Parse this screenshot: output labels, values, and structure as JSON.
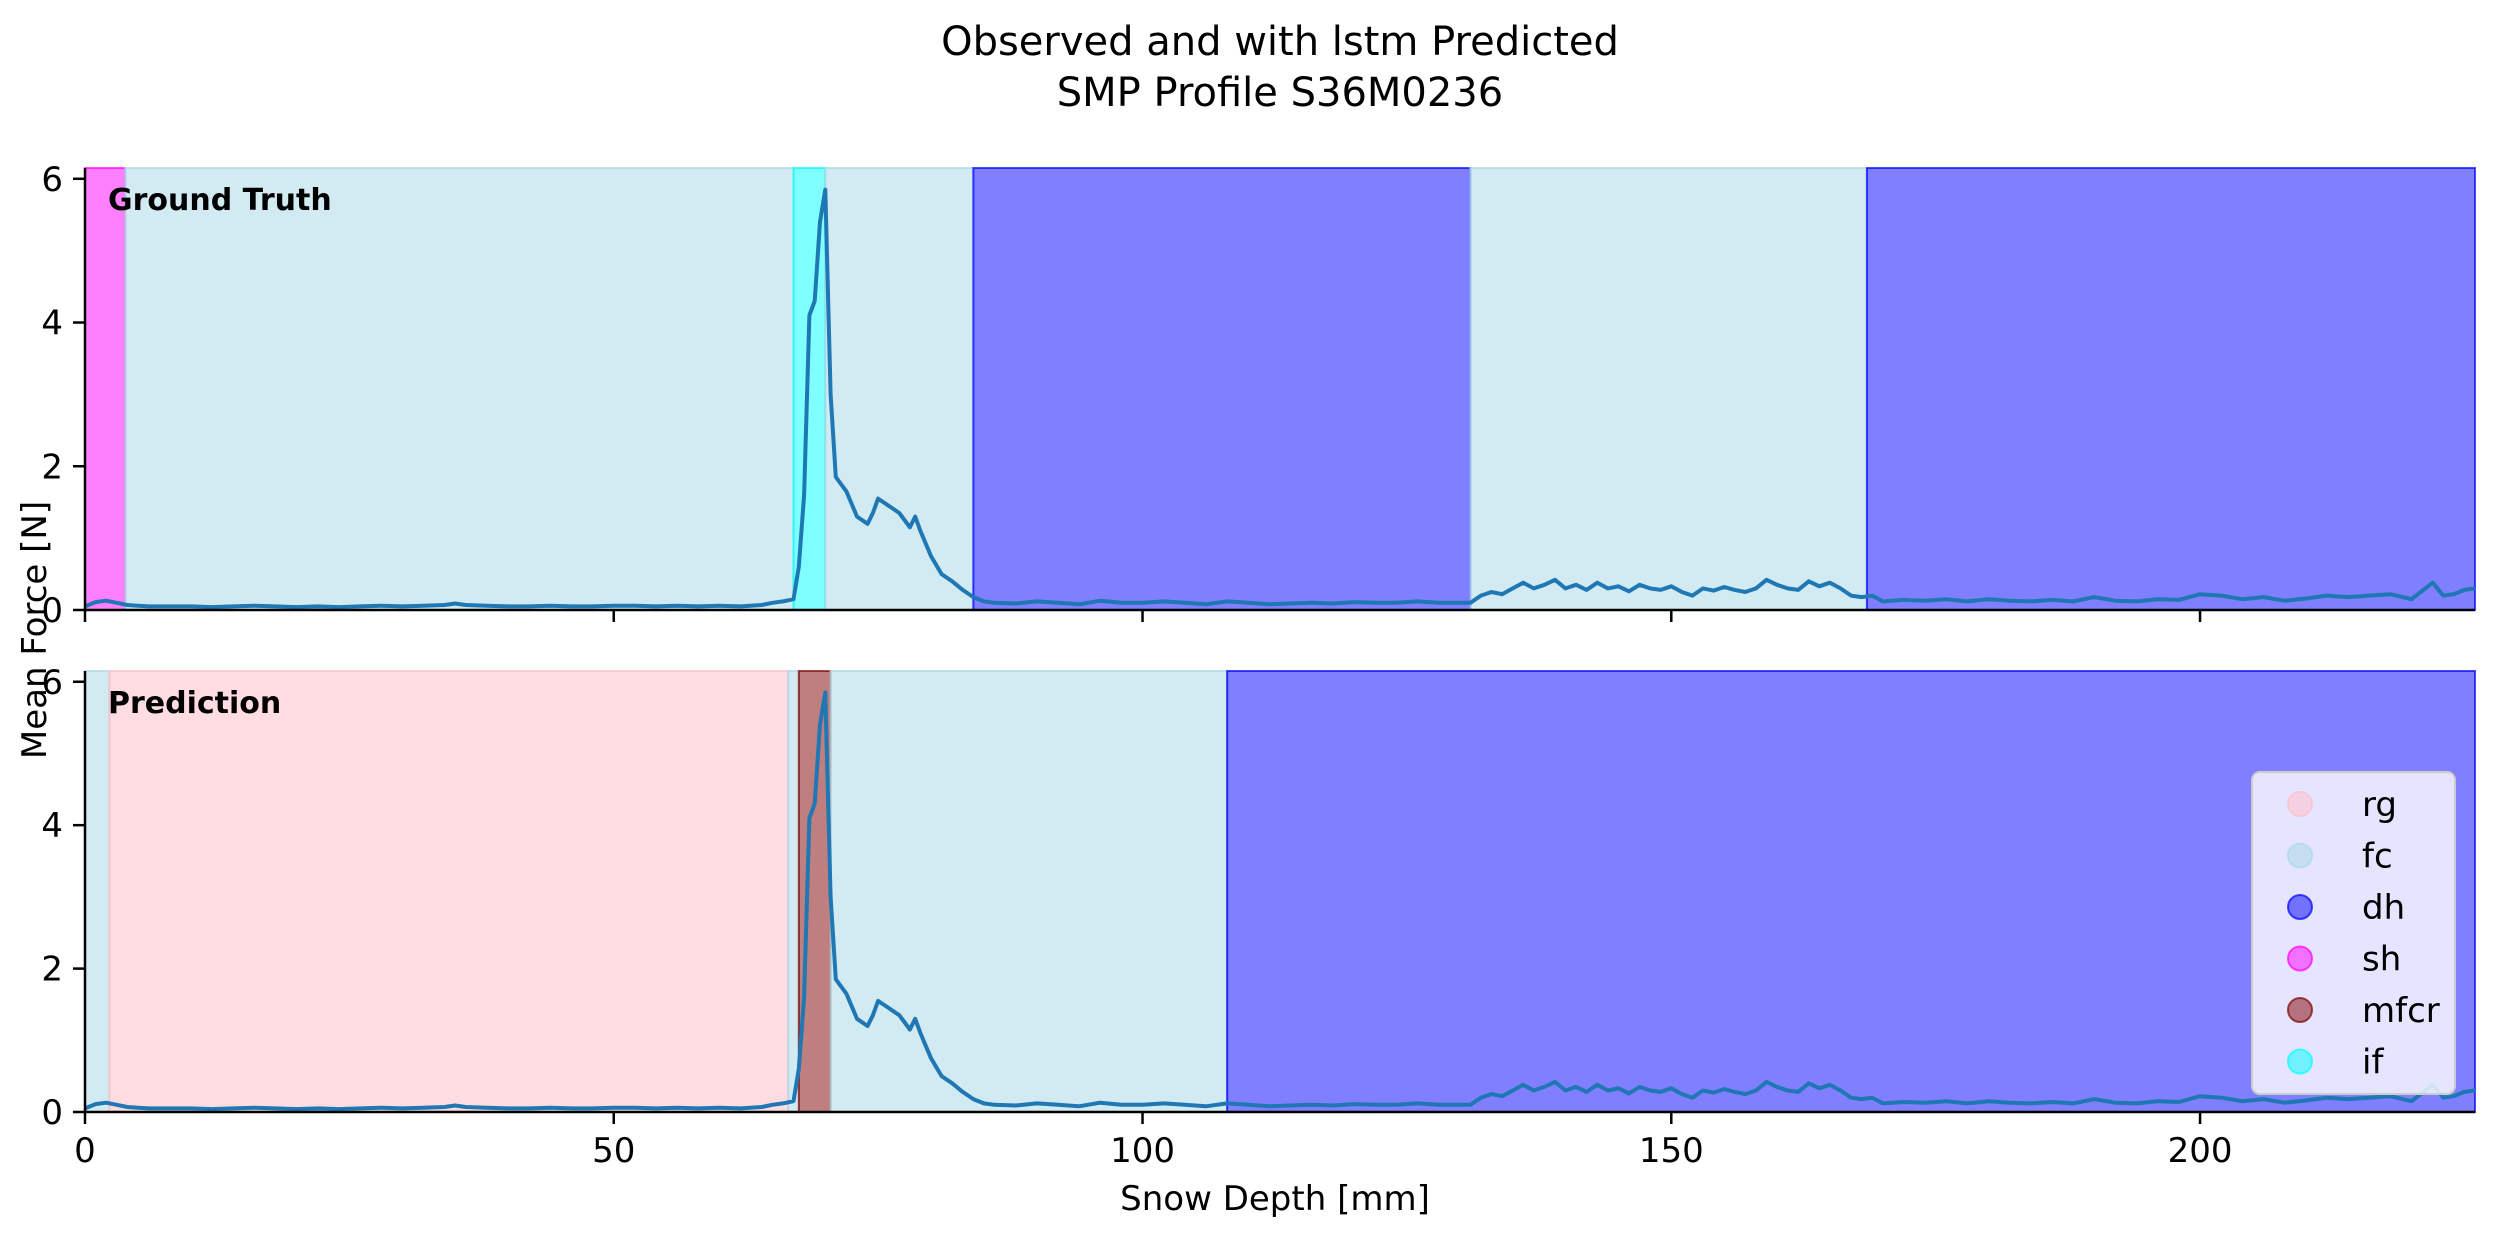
{
  "chart_data": {
    "type": "area",
    "title_line1": "Observed and with lstm Predicted",
    "title_line2": "SMP Profile S36M0236",
    "xlabel": "Snow Depth [mm]",
    "ylabel": "Mean Force [N]",
    "xlim": [
      0,
      226
    ],
    "ylim": [
      0,
      6.15
    ],
    "x_ticks": [
      0,
      50,
      100,
      150,
      200
    ],
    "y_ticks": [
      0,
      2,
      4,
      6
    ],
    "panels": [
      {
        "label": "Ground Truth",
        "segments": [
          {
            "class": "sh",
            "start": 0,
            "end": 3.8
          },
          {
            "class": "fc",
            "start": 3.8,
            "end": 67
          },
          {
            "class": "if",
            "start": 67,
            "end": 70
          },
          {
            "class": "fc",
            "start": 70,
            "end": 84
          },
          {
            "class": "dh",
            "start": 84,
            "end": 131
          },
          {
            "class": "fc",
            "start": 131,
            "end": 168.5
          },
          {
            "class": "dh",
            "start": 168.5,
            "end": 226
          }
        ]
      },
      {
        "label": "Prediction",
        "segments": [
          {
            "class": "fc",
            "start": 0,
            "end": 2.3
          },
          {
            "class": "rg",
            "start": 2.3,
            "end": 66.5
          },
          {
            "class": "fc",
            "start": 66.5,
            "end": 67.5
          },
          {
            "class": "mfcr",
            "start": 67.5,
            "end": 70.5
          },
          {
            "class": "fc",
            "start": 70.5,
            "end": 108
          },
          {
            "class": "dh",
            "start": 108,
            "end": 226
          }
        ]
      }
    ],
    "classes": [
      {
        "name": "rg",
        "color": "#ffc0cb",
        "alpha": 0.55
      },
      {
        "name": "fc",
        "color": "#add8e6",
        "alpha": 0.55
      },
      {
        "name": "dh",
        "color": "#0000ff",
        "alpha": 0.5
      },
      {
        "name": "sh",
        "color": "#ff00ff",
        "alpha": 0.5
      },
      {
        "name": "mfcr",
        "color": "#800000",
        "alpha": 0.5
      },
      {
        "name": "if",
        "color": "#00ffff",
        "alpha": 0.5
      }
    ],
    "series": {
      "color": "#1f77b4",
      "x": [
        0,
        1,
        2,
        3,
        4,
        5,
        6,
        8,
        10,
        12,
        14,
        16,
        18,
        20,
        22,
        24,
        26,
        28,
        30,
        32,
        34,
        35,
        36,
        38,
        40,
        42,
        44,
        46,
        48,
        50,
        52,
        54,
        56,
        58,
        60,
        62,
        64,
        65,
        66,
        67,
        67.5,
        68,
        68.5,
        69,
        69.5,
        70,
        70.5,
        71,
        72,
        73,
        74,
        74.5,
        75,
        76,
        77,
        78,
        78.5,
        79,
        80,
        81,
        82,
        83,
        84,
        85,
        86,
        88,
        90,
        92,
        94,
        96,
        98,
        100,
        102,
        104,
        106,
        108,
        110,
        112,
        114,
        116,
        118,
        120,
        122,
        124,
        126,
        128,
        130,
        131,
        132,
        133,
        134,
        135,
        136,
        137,
        138,
        139,
        140,
        141,
        142,
        143,
        144,
        145,
        146,
        147,
        148,
        149,
        150,
        151,
        152,
        153,
        154,
        155,
        156,
        157,
        158,
        159,
        160,
        161,
        162,
        163,
        164,
        165,
        166,
        167,
        168,
        169,
        170,
        172,
        174,
        176,
        178,
        180,
        182,
        184,
        186,
        188,
        190,
        192,
        194,
        196,
        198,
        200,
        202,
        204,
        206,
        208,
        210,
        212,
        214,
        216,
        218,
        220,
        222,
        223,
        224,
        225,
        226
      ],
      "y": [
        0.05,
        0.11,
        0.13,
        0.1,
        0.07,
        0.06,
        0.05,
        0.05,
        0.05,
        0.04,
        0.05,
        0.06,
        0.05,
        0.04,
        0.05,
        0.04,
        0.05,
        0.06,
        0.05,
        0.06,
        0.07,
        0.09,
        0.07,
        0.06,
        0.05,
        0.05,
        0.06,
        0.05,
        0.05,
        0.06,
        0.06,
        0.05,
        0.06,
        0.05,
        0.06,
        0.05,
        0.07,
        0.1,
        0.12,
        0.15,
        0.6,
        1.6,
        4.1,
        4.3,
        5.4,
        5.85,
        3.0,
        1.85,
        1.65,
        1.3,
        1.2,
        1.35,
        1.55,
        1.45,
        1.35,
        1.15,
        1.3,
        1.1,
        0.75,
        0.5,
        0.4,
        0.28,
        0.18,
        0.12,
        0.1,
        0.09,
        0.12,
        0.1,
        0.08,
        0.13,
        0.1,
        0.1,
        0.12,
        0.1,
        0.08,
        0.12,
        0.1,
        0.08,
        0.09,
        0.1,
        0.09,
        0.11,
        0.1,
        0.1,
        0.12,
        0.1,
        0.1,
        0.1,
        0.2,
        0.25,
        0.22,
        0.3,
        0.38,
        0.3,
        0.35,
        0.42,
        0.3,
        0.35,
        0.28,
        0.38,
        0.3,
        0.33,
        0.26,
        0.35,
        0.3,
        0.28,
        0.33,
        0.25,
        0.2,
        0.3,
        0.27,
        0.32,
        0.28,
        0.25,
        0.3,
        0.42,
        0.35,
        0.3,
        0.28,
        0.4,
        0.33,
        0.38,
        0.3,
        0.2,
        0.18,
        0.2,
        0.12,
        0.14,
        0.13,
        0.15,
        0.12,
        0.15,
        0.13,
        0.12,
        0.14,
        0.12,
        0.18,
        0.13,
        0.12,
        0.15,
        0.14,
        0.22,
        0.2,
        0.15,
        0.18,
        0.13,
        0.16,
        0.2,
        0.18,
        0.2,
        0.22,
        0.15,
        0.38,
        0.2,
        0.22,
        0.28,
        0.3
      ]
    }
  }
}
